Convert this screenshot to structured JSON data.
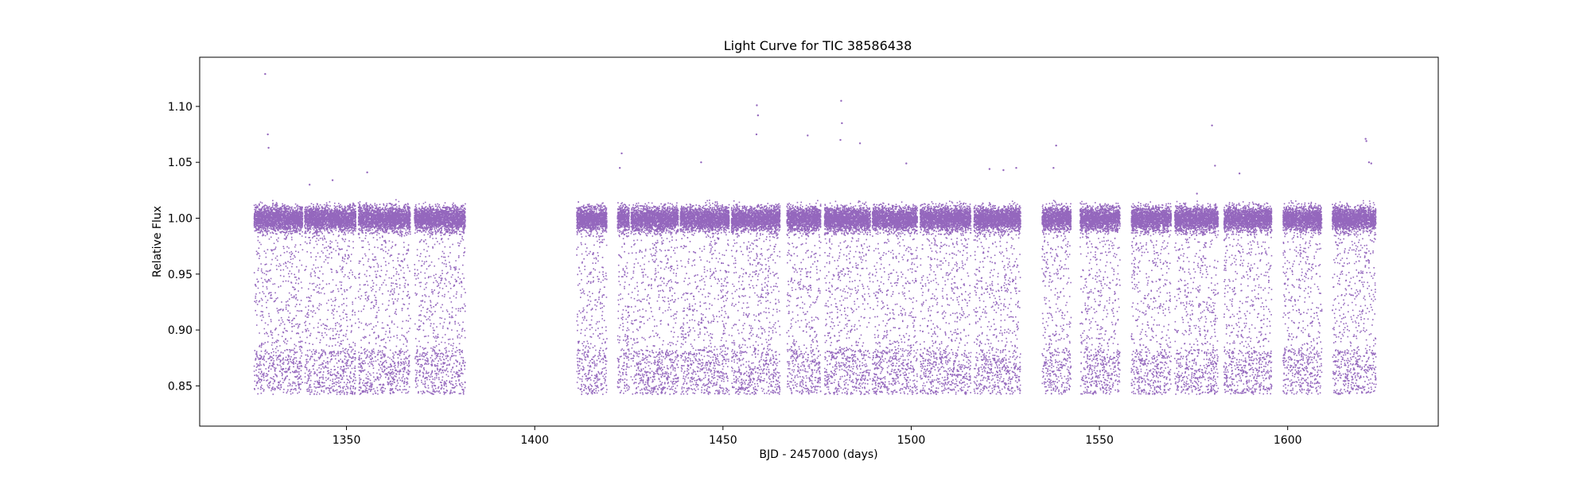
{
  "chart_data": {
    "type": "scatter",
    "title": "Light Curve for TIC 38586438",
    "xlabel": "BJD - 2457000 (days)",
    "ylabel": "Relative Flux",
    "xlim": [
      1311,
      1640
    ],
    "ylim": [
      0.814,
      1.144
    ],
    "xticks": [
      1350,
      1400,
      1450,
      1500,
      1550,
      1600
    ],
    "yticks": [
      0.85,
      0.9,
      0.95,
      1.0,
      1.05,
      1.1
    ],
    "xtick_labels": [
      "1350",
      "1400",
      "1450",
      "1500",
      "1550",
      "1600"
    ],
    "ytick_labels": [
      "0.85",
      "0.90",
      "0.95",
      "1.00",
      "1.05",
      "1.10"
    ],
    "grid": false,
    "legend": "none",
    "marker_color": "#9467bd",
    "baseline_flux": 1.0,
    "dip_floor_flux": 0.843,
    "segments": [
      [
        1325.3,
        1338.2
      ],
      [
        1338.7,
        1352.3
      ],
      [
        1353.0,
        1366.8
      ],
      [
        1367.9,
        1381.4
      ],
      [
        1411.0,
        1419.0
      ],
      [
        1421.8,
        1425.0
      ],
      [
        1425.4,
        1438.0
      ],
      [
        1438.5,
        1451.5
      ],
      [
        1452.1,
        1465.0
      ],
      [
        1466.8,
        1475.8
      ],
      [
        1476.8,
        1489.0
      ],
      [
        1489.5,
        1501.5
      ],
      [
        1502.2,
        1515.7
      ],
      [
        1516.5,
        1528.9
      ],
      [
        1534.6,
        1542.3
      ],
      [
        1544.7,
        1555.3
      ],
      [
        1558.3,
        1568.9
      ],
      [
        1569.8,
        1581.4
      ],
      [
        1582.9,
        1595.6
      ],
      [
        1598.6,
        1608.9
      ],
      [
        1611.7,
        1623.3
      ]
    ],
    "outliers": [
      {
        "x": 1328.4,
        "y": 1.129
      },
      {
        "x": 1329.1,
        "y": 1.075
      },
      {
        "x": 1329.3,
        "y": 1.063
      },
      {
        "x": 1340.2,
        "y": 1.03
      },
      {
        "x": 1346.3,
        "y": 1.034
      },
      {
        "x": 1355.5,
        "y": 1.041
      },
      {
        "x": 1423.1,
        "y": 1.058
      },
      {
        "x": 1422.6,
        "y": 1.045
      },
      {
        "x": 1444.2,
        "y": 1.05
      },
      {
        "x": 1459.0,
        "y": 1.101
      },
      {
        "x": 1459.3,
        "y": 1.092
      },
      {
        "x": 1458.9,
        "y": 1.075
      },
      {
        "x": 1472.5,
        "y": 1.074
      },
      {
        "x": 1481.4,
        "y": 1.105
      },
      {
        "x": 1481.6,
        "y": 1.085
      },
      {
        "x": 1481.2,
        "y": 1.07
      },
      {
        "x": 1486.4,
        "y": 1.067
      },
      {
        "x": 1498.7,
        "y": 1.049
      },
      {
        "x": 1520.8,
        "y": 1.044
      },
      {
        "x": 1524.5,
        "y": 1.043
      },
      {
        "x": 1527.9,
        "y": 1.045
      },
      {
        "x": 1538.5,
        "y": 1.065
      },
      {
        "x": 1537.8,
        "y": 1.045
      },
      {
        "x": 1579.9,
        "y": 1.083
      },
      {
        "x": 1575.9,
        "y": 1.022
      },
      {
        "x": 1580.7,
        "y": 1.047
      },
      {
        "x": 1587.2,
        "y": 1.04
      },
      {
        "x": 1620.7,
        "y": 1.071
      },
      {
        "x": 1620.9,
        "y": 1.069
      },
      {
        "x": 1621.6,
        "y": 1.05
      },
      {
        "x": 1622.2,
        "y": 1.049
      }
    ]
  }
}
